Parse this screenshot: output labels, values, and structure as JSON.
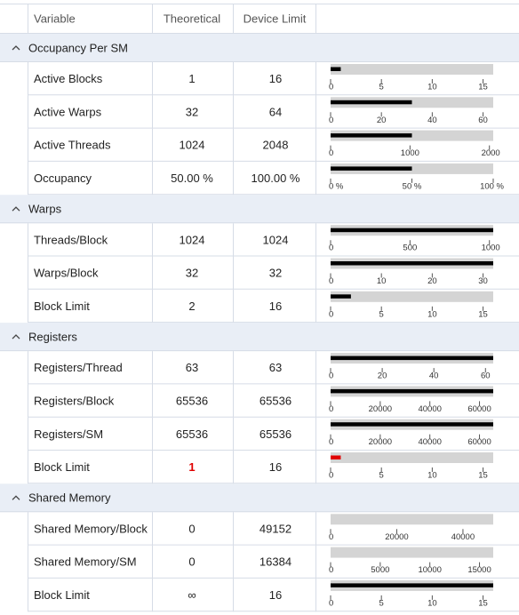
{
  "header": {
    "columns": [
      "Variable",
      "Theoretical",
      "Device Limit"
    ]
  },
  "groups": [
    {
      "title": "Occupancy Per SM",
      "rows": [
        {
          "variable": "Active Blocks",
          "theoretical": "1",
          "device_limit": "16",
          "bar": {
            "value": 1,
            "xlim": [
              0,
              16
            ],
            "xticks": [
              0,
              5,
              10,
              15
            ]
          }
        },
        {
          "variable": "Active Warps",
          "theoretical": "32",
          "device_limit": "64",
          "bar": {
            "value": 32,
            "xlim": [
              0,
              64
            ],
            "xticks": [
              0,
              20,
              40,
              60
            ]
          }
        },
        {
          "variable": "Active Threads",
          "theoretical": "1024",
          "device_limit": "2048",
          "bar": {
            "value": 1024,
            "xlim": [
              0,
              2048
            ],
            "xticks": [
              0,
              1000,
              2000
            ]
          }
        },
        {
          "variable": "Occupancy",
          "theoretical": "50.00 %",
          "device_limit": "100.00 %",
          "bar": {
            "value": 50,
            "xlim": [
              0,
              100
            ],
            "xticks": [
              {
                "value": 0,
                "label": "0 %"
              },
              {
                "value": 50,
                "label": "50 %"
              },
              {
                "value": 100,
                "label": "100 %"
              }
            ]
          }
        }
      ]
    },
    {
      "title": "Warps",
      "rows": [
        {
          "variable": "Threads/Block",
          "theoretical": "1024",
          "device_limit": "1024",
          "bar": {
            "value": 1024,
            "xlim": [
              0,
              1024
            ],
            "xticks": [
              0,
              500,
              1000
            ]
          }
        },
        {
          "variable": "Warps/Block",
          "theoretical": "32",
          "device_limit": "32",
          "bar": {
            "value": 32,
            "xlim": [
              0,
              32
            ],
            "xticks": [
              0,
              10,
              20,
              30
            ]
          }
        },
        {
          "variable": "Block Limit",
          "theoretical": "2",
          "device_limit": "16",
          "bar": {
            "value": 2,
            "xlim": [
              0,
              16
            ],
            "xticks": [
              0,
              5,
              10,
              15
            ]
          }
        }
      ]
    },
    {
      "title": "Registers",
      "rows": [
        {
          "variable": "Registers/Thread",
          "theoretical": "63",
          "device_limit": "63",
          "bar": {
            "value": 63,
            "xlim": [
              0,
              63
            ],
            "xticks": [
              0,
              20,
              40,
              60
            ]
          }
        },
        {
          "variable": "Registers/Block",
          "theoretical": "65536",
          "device_limit": "65536",
          "bar": {
            "value": 65536,
            "xlim": [
              0,
              65536
            ],
            "xticks": [
              0,
              20000,
              40000,
              60000
            ]
          }
        },
        {
          "variable": "Registers/SM",
          "theoretical": "65536",
          "device_limit": "65536",
          "bar": {
            "value": 65536,
            "xlim": [
              0,
              65536
            ],
            "xticks": [
              0,
              20000,
              40000,
              60000
            ]
          }
        },
        {
          "variable": "Block Limit",
          "theoretical": "1",
          "device_limit": "16",
          "color": "#e00000",
          "bar": {
            "value": 1,
            "xlim": [
              0,
              16
            ],
            "xticks": [
              0,
              5,
              10,
              15
            ]
          }
        }
      ]
    },
    {
      "title": "Shared Memory",
      "rows": [
        {
          "variable": "Shared Memory/Block",
          "theoretical": "0",
          "device_limit": "49152",
          "bar": {
            "value": 0,
            "xlim": [
              0,
              49152
            ],
            "xticks": [
              0,
              20000,
              40000
            ]
          }
        },
        {
          "variable": "Shared Memory/SM",
          "theoretical": "0",
          "device_limit": "16384",
          "bar": {
            "value": 0,
            "xlim": [
              0,
              16384
            ],
            "xticks": [
              0,
              5000,
              10000,
              15000
            ]
          }
        },
        {
          "variable": "Block Limit",
          "theoretical": "∞",
          "device_limit": "16",
          "bar": {
            "value": 16,
            "xlim": [
              0,
              16
            ],
            "xticks": [
              0,
              5,
              10,
              15
            ]
          }
        }
      ]
    }
  ]
}
